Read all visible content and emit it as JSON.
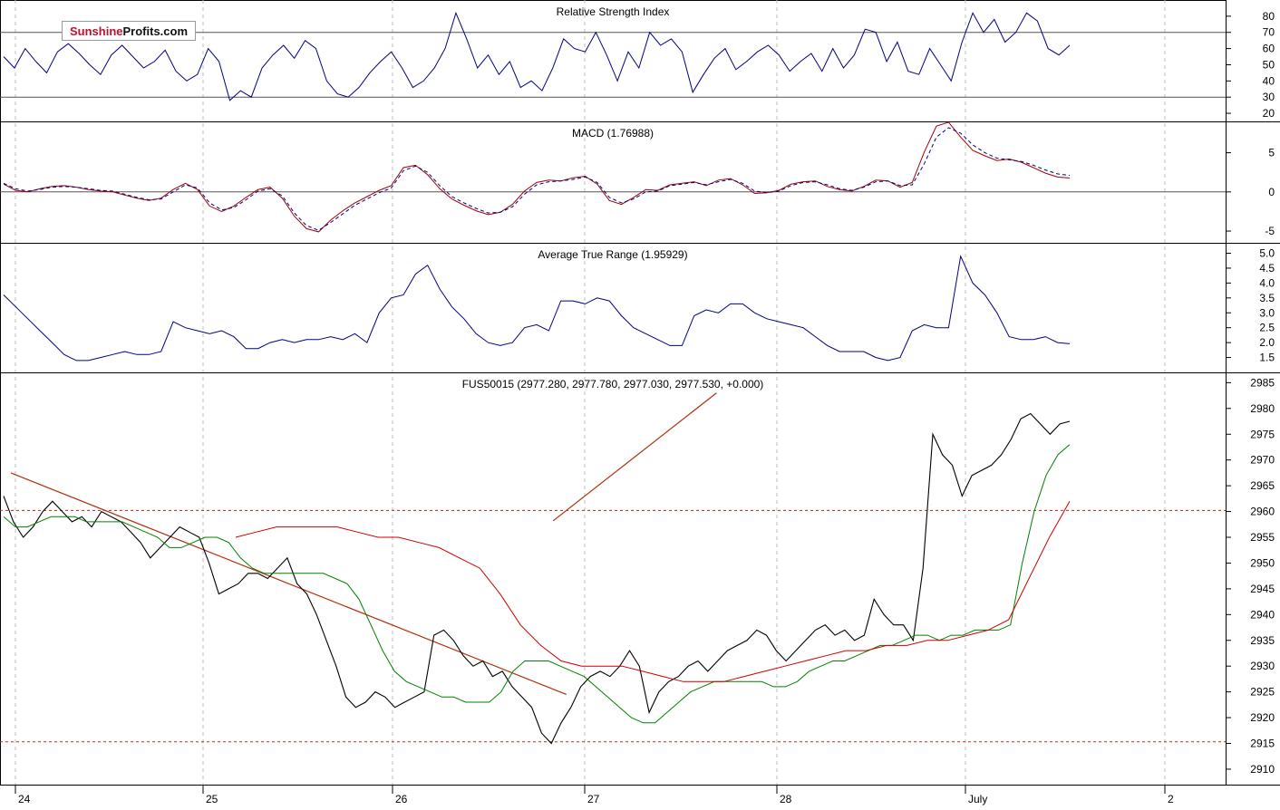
{
  "brand": {
    "part1": "Sunshine",
    "part2": "Profits.com"
  },
  "colors": {
    "price": "#000000",
    "ma_fast": "#008000",
    "ma_slow": "#cc0000",
    "trendline": "#b03010",
    "indicator": "#000080",
    "level": "#b03010",
    "axis": "#000000",
    "grid": "#bdbdbd"
  },
  "chart_data": [
    {
      "id": "rsi",
      "type": "line",
      "title": "Relative Strength Index",
      "ylim": [
        15,
        90
      ],
      "yticks": [
        20,
        30,
        40,
        50,
        60,
        70,
        80
      ],
      "ref_lines": [
        30,
        70
      ],
      "series": [
        {
          "values": [
            55,
            48,
            60,
            52,
            45,
            58,
            63,
            57,
            50,
            44,
            56,
            62,
            55,
            48,
            52,
            59,
            46,
            40,
            44,
            60,
            52,
            28,
            34,
            30,
            48,
            56,
            62,
            54,
            65,
            60,
            40,
            32,
            30,
            36,
            45,
            52,
            58,
            48,
            36,
            40,
            48,
            60,
            82,
            66,
            48,
            56,
            44,
            52,
            36,
            40,
            34,
            48,
            66,
            60,
            58,
            70,
            56,
            40,
            58,
            48,
            70,
            62,
            66,
            58,
            33,
            44,
            54,
            60,
            47,
            52,
            58,
            62,
            56,
            46,
            52,
            57,
            46,
            60,
            48,
            56,
            72,
            70,
            52,
            64,
            46,
            44,
            60,
            50,
            40,
            64,
            82,
            70,
            78,
            64,
            70,
            82,
            77,
            60,
            56,
            62
          ]
        }
      ]
    },
    {
      "id": "macd",
      "type": "line",
      "title": "MACD (1.76988)",
      "ylim": [
        -6.5,
        9
      ],
      "yticks": [
        -5,
        0,
        5
      ],
      "ref_lines": [
        0
      ],
      "series": [
        {
          "values": [
            1.0,
            0.2,
            0.0,
            0.4,
            0.7,
            0.8,
            0.6,
            0.3,
            0.1,
            0.0,
            -0.4,
            -0.8,
            -1.1,
            -0.8,
            0.3,
            1.1,
            0.3,
            -1.8,
            -2.5,
            -1.8,
            -0.7,
            0.3,
            0.6,
            -0.8,
            -3.1,
            -4.7,
            -5.1,
            -3.6,
            -2.4,
            -1.4,
            -0.6,
            0.2,
            0.8,
            3.1,
            3.4,
            2.2,
            0.4,
            -0.9,
            -1.7,
            -2.4,
            -2.9,
            -2.6,
            -1.6,
            0.1,
            1.2,
            1.5,
            1.4,
            1.8,
            2.0,
            1.0,
            -1.1,
            -1.6,
            -0.7,
            0.3,
            0.2,
            0.9,
            1.1,
            1.3,
            0.8,
            1.5,
            1.7,
            0.9,
            -0.2,
            -0.1,
            0.2,
            1.0,
            1.3,
            1.4,
            0.7,
            0.3,
            0.1,
            0.7,
            1.5,
            1.4,
            0.6,
            1.2,
            5.1,
            8.4,
            8.9,
            7.0,
            5.3,
            4.6,
            4.0,
            4.2,
            3.8,
            3.1,
            2.4,
            1.9,
            1.77
          ]
        },
        {
          "values": [
            1.1,
            0.4,
            0.1,
            0.3,
            0.6,
            0.7,
            0.6,
            0.4,
            0.2,
            0.1,
            -0.3,
            -0.7,
            -1.0,
            -0.9,
            0.0,
            0.9,
            0.5,
            -1.4,
            -2.3,
            -2.0,
            -1.0,
            0.1,
            0.4,
            -0.5,
            -2.7,
            -4.3,
            -4.9,
            -3.9,
            -2.8,
            -1.7,
            -0.9,
            -0.1,
            0.5,
            2.7,
            3.3,
            2.5,
            0.8,
            -0.6,
            -1.4,
            -2.1,
            -2.7,
            -2.6,
            -1.9,
            -0.3,
            0.9,
            1.3,
            1.4,
            1.6,
            1.9,
            1.2,
            -0.7,
            -1.4,
            -0.9,
            0.0,
            0.1,
            0.8,
            1.0,
            1.2,
            0.9,
            1.3,
            1.6,
            1.1,
            0.1,
            -0.1,
            0.1,
            0.8,
            1.2,
            1.3,
            0.9,
            0.4,
            0.2,
            0.6,
            1.3,
            1.4,
            0.8,
            0.9,
            3.6,
            7.0,
            8.2,
            7.5,
            6.0,
            5.0,
            4.3,
            4.1,
            3.9,
            3.4,
            2.8,
            2.3,
            2.1
          ]
        }
      ]
    },
    {
      "id": "atr",
      "type": "line",
      "title": "Average True Range (1.95929)",
      "ylim": [
        1.0,
        5.35
      ],
      "yticks": [
        1.5,
        2.0,
        2.5,
        3.0,
        3.5,
        4.0,
        4.5,
        5.0
      ],
      "ref_lines": [],
      "series": [
        {
          "values": [
            3.6,
            3.2,
            2.8,
            2.4,
            2.0,
            1.6,
            1.4,
            1.4,
            1.5,
            1.6,
            1.7,
            1.6,
            1.6,
            1.7,
            2.7,
            2.5,
            2.4,
            2.3,
            2.4,
            2.2,
            1.8,
            1.8,
            2.0,
            2.1,
            2.0,
            2.1,
            2.1,
            2.2,
            2.1,
            2.3,
            2.0,
            3.0,
            3.5,
            3.6,
            4.3,
            4.6,
            3.8,
            3.2,
            2.8,
            2.3,
            2.0,
            1.9,
            2.0,
            2.5,
            2.6,
            2.4,
            3.4,
            3.4,
            3.3,
            3.5,
            3.4,
            2.9,
            2.5,
            2.3,
            2.1,
            1.9,
            1.9,
            2.9,
            3.1,
            3.0,
            3.3,
            3.3,
            3.0,
            2.8,
            2.7,
            2.6,
            2.5,
            2.2,
            1.9,
            1.7,
            1.7,
            1.7,
            1.5,
            1.4,
            1.5,
            2.4,
            2.6,
            2.5,
            2.5,
            4.9,
            4.0,
            3.6,
            3.0,
            2.2,
            2.1,
            2.1,
            2.2,
            2.0,
            1.96
          ]
        }
      ]
    },
    {
      "id": "price",
      "type": "line",
      "title": "FUS50015 (2977.280, 2977.780, 2977.030, 2977.530, +0.000)",
      "ylim": [
        2907,
        2987
      ],
      "yticks": [
        2910,
        2915,
        2920,
        2925,
        2930,
        2935,
        2940,
        2945,
        2950,
        2955,
        2960,
        2965,
        2970,
        2975,
        2980,
        2985
      ],
      "x_tick_labels": [
        "24",
        "25",
        "26",
        "27",
        "28",
        "July",
        "2"
      ],
      "ref_lines": [
        2960.2,
        2915.3
      ],
      "trendlines": [
        {
          "from": [
            0,
            2967.5
          ],
          "to": [
            2.96,
            2924.5
          ]
        },
        {
          "from": [
            2.89,
            2958.2
          ],
          "to": [
            3.76,
            2983.0
          ]
        }
      ],
      "series": [
        {
          "values": [
            2963,
            2958,
            2955,
            2957,
            2960,
            2962,
            2960,
            2958,
            2959,
            2957,
            2960,
            2959,
            2958,
            2956,
            2954,
            2951,
            2953,
            2955,
            2957,
            2956,
            2955,
            2950,
            2944,
            2945,
            2946,
            2948,
            2948,
            2947,
            2949,
            2951,
            2946,
            2944,
            2940,
            2935,
            2930,
            2924,
            2922,
            2923,
            2925,
            2924,
            2922,
            2923,
            2924,
            2925,
            2936,
            2937,
            2935,
            2932,
            2930,
            2931,
            2928,
            2929,
            2926,
            2924,
            2922,
            2917,
            2915,
            2919,
            2922,
            2926,
            2928,
            2929,
            2928,
            2930,
            2933,
            2930,
            2921,
            2925,
            2927,
            2928,
            2930,
            2931,
            2929,
            2931,
            2933,
            2934,
            2935,
            2937,
            2936,
            2933,
            2931,
            2933,
            2935,
            2937,
            2938,
            2936,
            2937,
            2935,
            2936,
            2943,
            2940,
            2938,
            2938,
            2935,
            2949,
            2975,
            2971,
            2969,
            2963,
            2967,
            2968,
            2969,
            2971,
            2974,
            2978,
            2979,
            2977,
            2975,
            2977,
            2977.5
          ]
        },
        {
          "values": [
            2959,
            2957,
            2957,
            2958,
            2959,
            2959,
            2959,
            2958,
            2958,
            2958,
            2958,
            2957,
            2956,
            2955,
            2953,
            2953,
            2954,
            2955,
            2955,
            2954,
            2951,
            2949,
            2948,
            2948,
            2948,
            2948,
            2948,
            2948,
            2947,
            2946,
            2943,
            2938,
            2933,
            2929,
            2927,
            2926,
            2925,
            2924,
            2924,
            2923,
            2923,
            2923,
            2925,
            2929,
            2931,
            2931,
            2931,
            2930,
            2929,
            2928,
            2926,
            2924,
            2922,
            2920,
            2919,
            2919,
            2921,
            2923,
            2925,
            2926,
            2927,
            2927,
            2927,
            2927,
            2927,
            2926,
            2926,
            2927,
            2929,
            2930,
            2931,
            2931,
            2932,
            2933,
            2934,
            2934,
            2935,
            2936,
            2936,
            2935,
            2936,
            2936,
            2937,
            2937,
            2937,
            2938,
            2950,
            2960,
            2967,
            2971,
            2973
          ]
        },
        {
          "values": [
            2955,
            2956,
            2957,
            2957,
            2957,
            2957,
            2956,
            2955,
            2955,
            2954,
            2953,
            2951,
            2949,
            2944,
            2938,
            2934,
            2931,
            2930,
            2930,
            2930,
            2929,
            2928,
            2927,
            2927,
            2927,
            2928,
            2929,
            2930,
            2931,
            2932,
            2933,
            2933,
            2934,
            2934,
            2935,
            2935,
            2936,
            2937,
            2939,
            2947,
            2955,
            2962
          ]
        }
      ]
    }
  ]
}
